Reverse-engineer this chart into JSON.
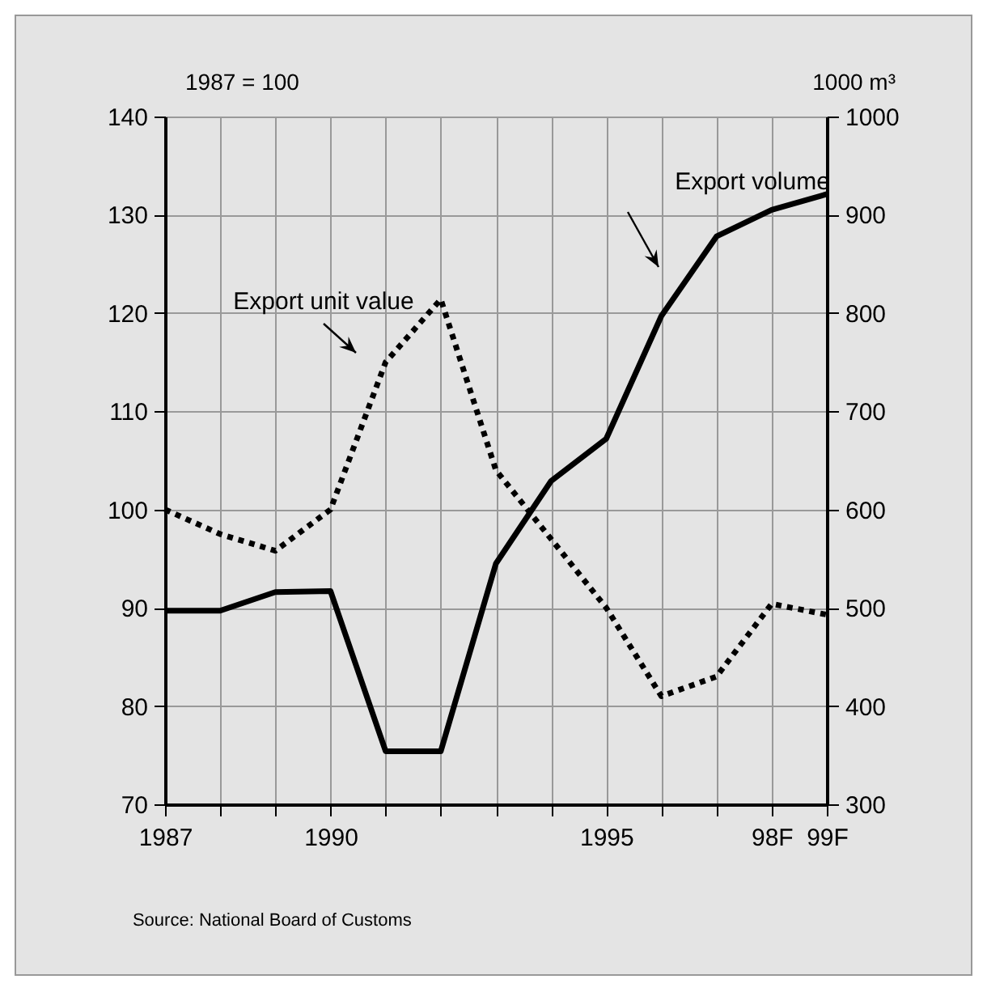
{
  "chart_data": {
    "type": "line",
    "ylabel": "1987 = 100",
    "y2label": "1000 m³",
    "categories": [
      "1987",
      null,
      null,
      "1990",
      null,
      null,
      null,
      null,
      "1995",
      null,
      null,
      "98F",
      "99F"
    ],
    "ylim": [
      70,
      140
    ],
    "yticks": [
      70,
      80,
      90,
      100,
      110,
      120,
      130,
      140
    ],
    "y2lim": [
      300,
      1000
    ],
    "y2ticks": [
      300,
      400,
      500,
      600,
      700,
      800,
      900,
      1000
    ],
    "grid": true,
    "series": [
      {
        "name": "Export unit value",
        "color": "#000000",
        "line_style": "dotted",
        "values": [
          100,
          97.5,
          95.8,
          100,
          115,
          121.4,
          104,
          97,
          90,
          81,
          83,
          90.4,
          89.3
        ]
      },
      {
        "name": "Export volume",
        "color": "#000000",
        "line_style": "solid",
        "axis": "y2",
        "values": [
          497,
          497,
          516,
          517,
          354,
          354,
          545,
          629,
          672,
          797,
          878,
          905,
          921
        ]
      }
    ],
    "annotations": [
      "Source: National Board of Customs"
    ]
  }
}
